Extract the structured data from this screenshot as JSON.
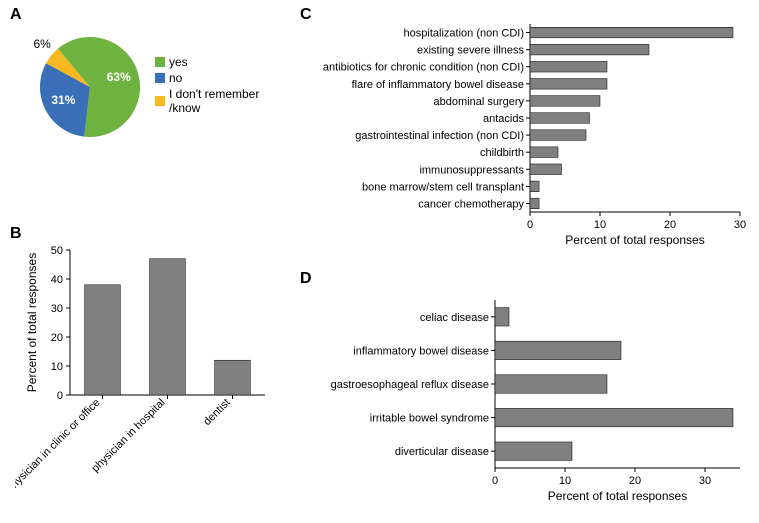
{
  "figure": {
    "background_color": "#ffffff",
    "panel_label_fontsize": 16,
    "panel_label_fontweight": "bold"
  },
  "panelA": {
    "label": "A",
    "type": "pie",
    "slices": [
      {
        "name": "yes",
        "value": 63,
        "label": "63%",
        "color": "#6eb33f"
      },
      {
        "name": "no",
        "value": 31,
        "label": "31%",
        "color": "#3a6fb7"
      },
      {
        "name": "I don't remember /know",
        "value": 6,
        "label": "6%",
        "color": "#f7b71e"
      }
    ],
    "legend": {
      "items": [
        {
          "text": "yes",
          "color": "#6eb33f"
        },
        {
          "text": "no",
          "color": "#3a6fb7"
        },
        {
          "text": "I don't remember /know",
          "color": "#f7b71e"
        }
      ],
      "fontsize": 12
    },
    "radius": 50,
    "start_angle_deg": -40
  },
  "panelB": {
    "label": "B",
    "type": "bar",
    "orientation": "vertical",
    "categories": [
      "physician in clinic or office",
      "physician in hospital",
      "dentist"
    ],
    "values": [
      38,
      47,
      12
    ],
    "bar_color": "#808080",
    "bar_border": "#000000",
    "bar_width": 0.55,
    "y": {
      "min": 0,
      "max": 50,
      "ticks": [
        0,
        10,
        20,
        30,
        40,
        50
      ],
      "title": "Percent of total responses"
    },
    "label_fontsize": 11,
    "axis_title_fontsize": 12
  },
  "panelC": {
    "label": "C",
    "type": "bar",
    "orientation": "horizontal",
    "categories": [
      "hospitalization (non CDI)",
      "existing severe illness",
      "antibiotics for chronic condition (non CDI)",
      "flare of inflammatory bowel disease",
      "abdominal surgery",
      "antacids",
      "gastrointestinal infection (non CDI)",
      "childbirth",
      "immunosuppressants",
      "bone marrow/stem cell transplant",
      "cancer chemotherapy"
    ],
    "values": [
      29,
      17,
      11,
      11,
      10,
      8.5,
      8,
      4,
      4.5,
      1.3,
      1.3
    ],
    "bar_color": "#808080",
    "bar_border": "#000000",
    "bar_height": 0.62,
    "x": {
      "min": 0,
      "max": 30,
      "ticks": [
        0,
        10,
        20,
        30
      ],
      "title": "Percent of total responses"
    },
    "label_fontsize": 11,
    "axis_title_fontsize": 12
  },
  "panelD": {
    "label": "D",
    "type": "bar",
    "orientation": "horizontal",
    "categories": [
      "celiac disease",
      "inflammatory bowel disease",
      "gastroesophageal reflux disease",
      "irritable bowel syndrome",
      "diverticular disease"
    ],
    "values": [
      2,
      18,
      16,
      34,
      11
    ],
    "bar_color": "#808080",
    "bar_border": "#000000",
    "bar_height": 0.55,
    "x": {
      "min": 0,
      "max": 35,
      "ticks": [
        0,
        10,
        20,
        30
      ],
      "title": "Percent of total responses"
    },
    "label_fontsize": 11,
    "axis_title_fontsize": 12
  }
}
